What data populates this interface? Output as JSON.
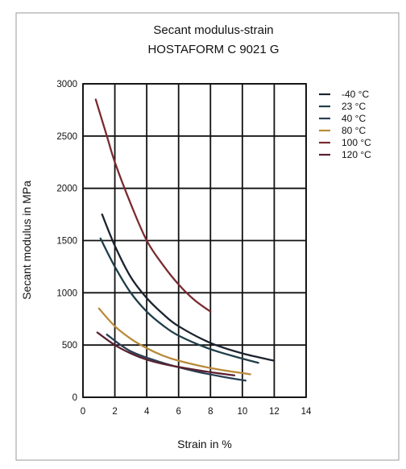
{
  "chart_data": {
    "type": "line",
    "title": "Secant modulus-strain",
    "subtitle": "HOSTAFORM C 9021 G",
    "xlabel": "Strain in %",
    "ylabel": "Secant modulus in MPa",
    "xlim": [
      0,
      14
    ],
    "ylim": [
      0,
      3000
    ],
    "x_ticks": [
      "0",
      "2",
      "4",
      "6",
      "8",
      "10",
      "12",
      "14"
    ],
    "y_ticks": [
      "0",
      "500",
      "1000",
      "1500",
      "2000",
      "2500",
      "3000"
    ],
    "grid": true,
    "legend_position": "right",
    "series": [
      {
        "name": "-40 °C",
        "color": "#1c2430",
        "points": [
          [
            1.2,
            1750
          ],
          [
            2,
            1450
          ],
          [
            3,
            1150
          ],
          [
            4,
            950
          ],
          [
            5,
            800
          ],
          [
            6,
            680
          ],
          [
            8,
            520
          ],
          [
            10,
            420
          ],
          [
            12,
            350
          ]
        ]
      },
      {
        "name": "23 °C",
        "color": "#1f3e48",
        "points": [
          [
            1.1,
            1520
          ],
          [
            2,
            1250
          ],
          [
            3,
            1000
          ],
          [
            4,
            820
          ],
          [
            5,
            690
          ],
          [
            6,
            590
          ],
          [
            8,
            460
          ],
          [
            10,
            370
          ],
          [
            11,
            330
          ]
        ]
      },
      {
        "name": "40 °C",
        "color": "#2a3f54",
        "points": [
          [
            1.5,
            600
          ],
          [
            3,
            440
          ],
          [
            5,
            330
          ],
          [
            7,
            250
          ],
          [
            9,
            190
          ],
          [
            10.2,
            160
          ]
        ]
      },
      {
        "name": "80 °C",
        "color": "#b88a3a",
        "points": [
          [
            1,
            850
          ],
          [
            2,
            680
          ],
          [
            3,
            560
          ],
          [
            4,
            470
          ],
          [
            5,
            400
          ],
          [
            6,
            350
          ],
          [
            8,
            280
          ],
          [
            10.5,
            220
          ]
        ]
      },
      {
        "name": "100 °C",
        "color": "#7a2a30",
        "points": [
          [
            0.8,
            2850
          ],
          [
            1.5,
            2500
          ],
          [
            2,
            2250
          ],
          [
            3,
            1850
          ],
          [
            4,
            1500
          ],
          [
            5,
            1270
          ],
          [
            6,
            1080
          ],
          [
            7,
            930
          ],
          [
            8,
            820
          ]
        ]
      },
      {
        "name": "120 °C",
        "color": "#5a2030",
        "points": [
          [
            0.9,
            620
          ],
          [
            2,
            500
          ],
          [
            3,
            420
          ],
          [
            4,
            360
          ],
          [
            5,
            320
          ],
          [
            6,
            290
          ],
          [
            8,
            240
          ],
          [
            9.5,
            210
          ]
        ]
      }
    ]
  }
}
